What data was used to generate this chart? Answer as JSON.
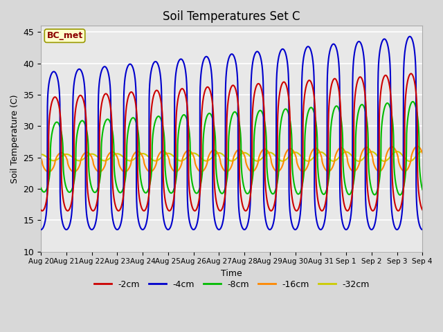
{
  "title": "Soil Temperatures Set C",
  "xlabel": "Time",
  "ylabel": "Soil Temperature (C)",
  "ylim": [
    10,
    46
  ],
  "annotation": "BC_met",
  "x_tick_labels": [
    "Aug 20",
    "Aug 21",
    "Aug 22",
    "Aug 23",
    "Aug 24",
    "Aug 25",
    "Aug 26",
    "Aug 27",
    "Aug 28",
    "Aug 29",
    "Aug 30",
    "Aug 31",
    "Sep 1",
    "Sep 2",
    "Sep 3",
    "Sep 4"
  ],
  "legend_entries": [
    "-2cm",
    "-4cm",
    "-8cm",
    "-16cm",
    "-32cm"
  ],
  "series_colors": [
    "#cc0000",
    "#0000cc",
    "#00bb00",
    "#ff8800",
    "#cccc00"
  ],
  "background_color": "#d8d8d8",
  "plot_bg_color": "#e8e8e8",
  "grid_color": "white"
}
